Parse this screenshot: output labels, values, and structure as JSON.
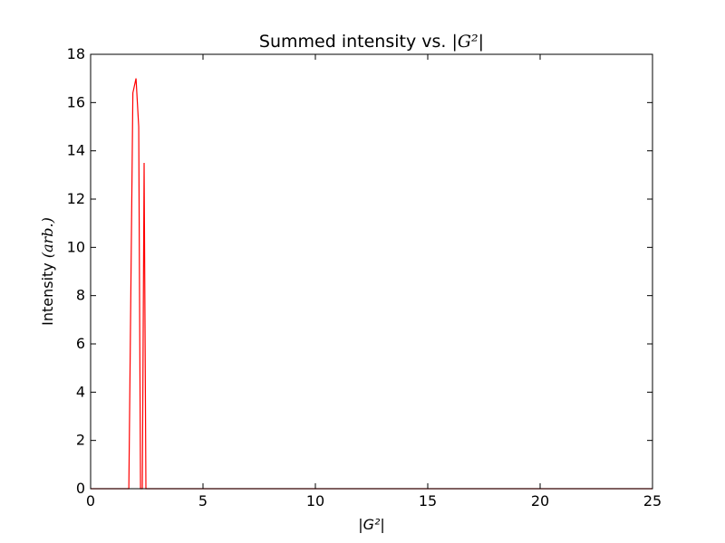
{
  "chart_data": {
    "type": "line",
    "title": {
      "text": "Summed intensity vs. ",
      "math": "|G²|"
    },
    "xlabel": "|G²|",
    "ylabel": {
      "text": "Intensity ",
      "math": "(arb.)"
    },
    "xlim": [
      0,
      25
    ],
    "ylim": [
      0,
      18
    ],
    "xticks": [
      0,
      5,
      10,
      15,
      20,
      25
    ],
    "yticks": [
      0,
      2,
      4,
      6,
      8,
      10,
      12,
      14,
      16,
      18
    ],
    "grid": false,
    "series": [
      {
        "color": "#ff0000",
        "x": [
          0,
          1.7,
          1.88,
          2.02,
          2.14,
          2.22,
          2.3,
          2.38,
          2.46,
          2.56,
          25
        ],
        "y": [
          0,
          0,
          16.4,
          17.0,
          15.0,
          0,
          0,
          13.5,
          0,
          0,
          0
        ]
      }
    ]
  }
}
